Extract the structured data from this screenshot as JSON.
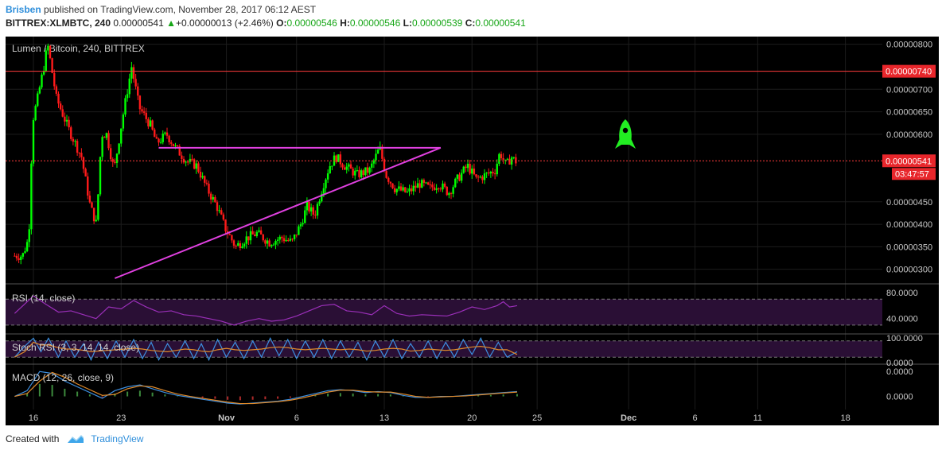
{
  "header": {
    "author": "Brisben",
    "published": "published on TradingView.com, November 28, 2017 06:12 AEST",
    "symbol_line": "BITTREX:XLMBTC, 240",
    "last": "0.00000541",
    "change": "+0.00000013 (+2.46%)",
    "o_label": "O:",
    "o": "0.00000546",
    "h_label": "H:",
    "h": "0.00000546",
    "l_label": "L:",
    "l": "0.00000539",
    "c_label": "C:",
    "c": "0.00000541"
  },
  "footer": {
    "created_with": "Created with",
    "brand": "TradingView"
  },
  "colors": {
    "up": "#00ff00",
    "down": "#ff1a1a",
    "triangle": "#e040e0",
    "resistance": "#ff3b3b",
    "rocket": "#22ee22"
  },
  "chart_data": {
    "type": "candlestick",
    "title": "Lumen / Bitcoin, 240, BITTREX",
    "x_ticks": [
      "16",
      "23",
      "Nov",
      "6",
      "13",
      "20",
      "25",
      "Dec",
      "6",
      "11",
      "18"
    ],
    "y_ticks": [
      "0.00000800",
      "0.00000700",
      "0.00000650",
      "0.00000600",
      "0.00000450",
      "0.00000400",
      "0.00000350",
      "0.00000300"
    ],
    "ylim": [
      2.8e-06,
      8.1e-06
    ],
    "price_labels": {
      "resistance": "0.00000740",
      "last": "0.00000541",
      "countdown": "03:47:57"
    },
    "resistance_level": 7.4e-06,
    "current_level": 5.41e-06,
    "pattern": {
      "name_hidden": true,
      "upper_line": {
        "y": 5.7e-06,
        "x_start": 26,
        "x_end": 48.5
      },
      "lower_line": {
        "x_start": 22.5,
        "y_start": 2.8e-06,
        "x_end": 48.5,
        "y_end": 5.7e-06
      }
    },
    "price_path": [
      [
        14.5,
        3.3e-06
      ],
      [
        15.3,
        3.3e-06
      ],
      [
        15.8,
        3.7e-06
      ],
      [
        16.1,
        6.3e-06
      ],
      [
        16.5,
        6.8e-06
      ],
      [
        17,
        7.5e-06
      ],
      [
        17.3,
        8e-06
      ],
      [
        18,
        6.8e-06
      ],
      [
        19,
        6.1e-06
      ],
      [
        20,
        5.5e-06
      ],
      [
        20.7,
        4.4e-06
      ],
      [
        21.2,
        4e-06
      ],
      [
        21.6,
        6e-06
      ],
      [
        22,
        6e-06
      ],
      [
        22.6,
        5.2e-06
      ],
      [
        23.3,
        6.4e-06
      ],
      [
        24,
        7.5e-06
      ],
      [
        24.6,
        6.6e-06
      ],
      [
        25.5,
        6.2e-06
      ],
      [
        26,
        5.8e-06
      ],
      [
        26.8,
        6e-06
      ],
      [
        27.5,
        5.7e-06
      ],
      [
        28.4,
        5.4e-06
      ],
      [
        29.2,
        5.3e-06
      ],
      [
        30,
        4.8e-06
      ],
      [
        30.8,
        4.4e-06
      ],
      [
        31.5,
        3.9e-06
      ],
      [
        32.3,
        3.5e-06
      ],
      [
        33.2,
        3.7e-06
      ],
      [
        34,
        3.8e-06
      ],
      [
        35,
        3.6e-06
      ],
      [
        36,
        3.7e-06
      ],
      [
        36.8,
        3.6e-06
      ],
      [
        37.5,
        4e-06
      ],
      [
        38,
        4.4e-06
      ],
      [
        38.6,
        4.2e-06
      ],
      [
        39.2,
        4.8e-06
      ],
      [
        39.8,
        5.3e-06
      ],
      [
        40.3,
        5.5e-06
      ],
      [
        41,
        5.3e-06
      ],
      [
        42,
        5.1e-06
      ],
      [
        43,
        5.2e-06
      ],
      [
        43.8,
        5.7e-06
      ],
      [
        44.3,
        5.1e-06
      ],
      [
        45,
        4.8e-06
      ],
      [
        46,
        4.7e-06
      ],
      [
        47,
        4.9e-06
      ],
      [
        47.8,
        4.8e-06
      ],
      [
        48.5,
        4.9e-06
      ],
      [
        49.3,
        4.7e-06
      ],
      [
        50,
        5e-06
      ],
      [
        50.8,
        5.3e-06
      ],
      [
        51.5,
        5e-06
      ],
      [
        52.3,
        5.1e-06
      ],
      [
        53,
        5.2e-06
      ],
      [
        53.4,
        5.6e-06
      ],
      [
        53.9,
        5.3e-06
      ],
      [
        54.3,
        5.5e-06
      ],
      [
        54.6,
        5.4e-06
      ]
    ],
    "indicators": [
      {
        "label": "RSI (14, close)",
        "ticks": [
          "80.0000",
          "40.0000"
        ],
        "range": [
          20,
          90
        ],
        "bands": [
          70,
          30
        ],
        "path": [
          [
            14.5,
            48
          ],
          [
            16,
            75
          ],
          [
            17,
            62
          ],
          [
            18,
            50
          ],
          [
            19,
            52
          ],
          [
            20,
            46
          ],
          [
            21,
            40
          ],
          [
            22,
            58
          ],
          [
            23,
            55
          ],
          [
            24,
            68
          ],
          [
            25,
            58
          ],
          [
            26,
            50
          ],
          [
            27,
            52
          ],
          [
            28,
            46
          ],
          [
            29,
            44
          ],
          [
            30,
            40
          ],
          [
            31,
            36
          ],
          [
            32,
            30
          ],
          [
            33,
            36
          ],
          [
            34,
            40
          ],
          [
            35,
            36
          ],
          [
            36,
            38
          ],
          [
            37,
            44
          ],
          [
            38,
            52
          ],
          [
            39,
            60
          ],
          [
            40,
            62
          ],
          [
            41,
            52
          ],
          [
            42,
            50
          ],
          [
            43,
            46
          ],
          [
            44,
            60
          ],
          [
            45,
            48
          ],
          [
            46,
            44
          ],
          [
            47,
            46
          ],
          [
            48,
            45
          ],
          [
            49,
            44
          ],
          [
            50,
            50
          ],
          [
            51,
            58
          ],
          [
            52,
            54
          ],
          [
            53,
            60
          ],
          [
            53.5,
            66
          ],
          [
            54,
            58
          ],
          [
            54.6,
            60
          ]
        ]
      },
      {
        "label": "Stoch RSI (3, 3, 14, 14, close)",
        "ticks": [
          "100.0000",
          "0.0000"
        ],
        "range": [
          0,
          100
        ],
        "bands": [
          80,
          20
        ],
        "path": [
          [
            14.5,
            20
          ],
          [
            15.3,
            60
          ],
          [
            16,
            90
          ],
          [
            16.6,
            40
          ],
          [
            17.2,
            90
          ],
          [
            18,
            20
          ],
          [
            18.6,
            80
          ],
          [
            19.3,
            20
          ],
          [
            20,
            70
          ],
          [
            20.6,
            10
          ],
          [
            21.2,
            75
          ],
          [
            21.9,
            15
          ],
          [
            22.6,
            80
          ],
          [
            23.3,
            20
          ],
          [
            24,
            85
          ],
          [
            24.7,
            15
          ],
          [
            25.4,
            75
          ],
          [
            26,
            10
          ],
          [
            26.7,
            70
          ],
          [
            27.4,
            20
          ],
          [
            28.1,
            80
          ],
          [
            28.8,
            15
          ],
          [
            29.4,
            70
          ],
          [
            30,
            10
          ],
          [
            30.7,
            85
          ],
          [
            31.4,
            20
          ],
          [
            32.1,
            75
          ],
          [
            32.8,
            15
          ],
          [
            33.5,
            80
          ],
          [
            34.2,
            20
          ],
          [
            34.9,
            90
          ],
          [
            35.6,
            25
          ],
          [
            36.3,
            85
          ],
          [
            37,
            15
          ],
          [
            37.7,
            80
          ],
          [
            38.4,
            20
          ],
          [
            39.1,
            85
          ],
          [
            39.8,
            15
          ],
          [
            40.5,
            80
          ],
          [
            41.2,
            20
          ],
          [
            41.9,
            75
          ],
          [
            42.6,
            10
          ],
          [
            43.3,
            80
          ],
          [
            44,
            20
          ],
          [
            44.7,
            85
          ],
          [
            45.4,
            15
          ],
          [
            46.1,
            70
          ],
          [
            46.8,
            20
          ],
          [
            47.5,
            80
          ],
          [
            48.2,
            15
          ],
          [
            48.9,
            75
          ],
          [
            49.6,
            20
          ],
          [
            50.3,
            85
          ],
          [
            51,
            30
          ],
          [
            51.7,
            90
          ],
          [
            52.4,
            20
          ],
          [
            53.1,
            75
          ],
          [
            53.8,
            20
          ],
          [
            54.6,
            40
          ]
        ]
      },
      {
        "label": "MACD (12, 26, close, 9)",
        "ticks": [
          "0.0000",
          "0.0000"
        ],
        "range": [
          -0.6,
          1.6
        ],
        "path": [
          [
            14.5,
            0
          ],
          [
            15.5,
            0.3
          ],
          [
            16.5,
            1.3
          ],
          [
            17.5,
            1.2
          ],
          [
            18.5,
            0.8
          ],
          [
            19.5,
            0.5
          ],
          [
            20.5,
            0.2
          ],
          [
            21.5,
            -0.1
          ],
          [
            22.5,
            0.3
          ],
          [
            23.5,
            0.5
          ],
          [
            24.5,
            0.6
          ],
          [
            25.5,
            0.4
          ],
          [
            26.5,
            0.2
          ],
          [
            27.5,
            0.05
          ],
          [
            28.5,
            -0.05
          ],
          [
            29.5,
            -0.15
          ],
          [
            30.5,
            -0.25
          ],
          [
            31.5,
            -0.35
          ],
          [
            32.5,
            -0.4
          ],
          [
            33.5,
            -0.35
          ],
          [
            34.5,
            -0.3
          ],
          [
            35.5,
            -0.25
          ],
          [
            36.5,
            -0.15
          ],
          [
            37.5,
            0.0
          ],
          [
            38.5,
            0.15
          ],
          [
            39.5,
            0.3
          ],
          [
            40.5,
            0.35
          ],
          [
            41.5,
            0.3
          ],
          [
            42.5,
            0.2
          ],
          [
            43.5,
            0.25
          ],
          [
            44.5,
            0.2
          ],
          [
            45.5,
            0.05
          ],
          [
            46.5,
            -0.05
          ],
          [
            47.5,
            -0.05
          ],
          [
            48.5,
            0.0
          ],
          [
            49.5,
            0.0
          ],
          [
            50.5,
            0.05
          ],
          [
            51.5,
            0.1
          ],
          [
            52.5,
            0.15
          ],
          [
            53.5,
            0.2
          ],
          [
            54.6,
            0.25
          ]
        ]
      }
    ]
  }
}
